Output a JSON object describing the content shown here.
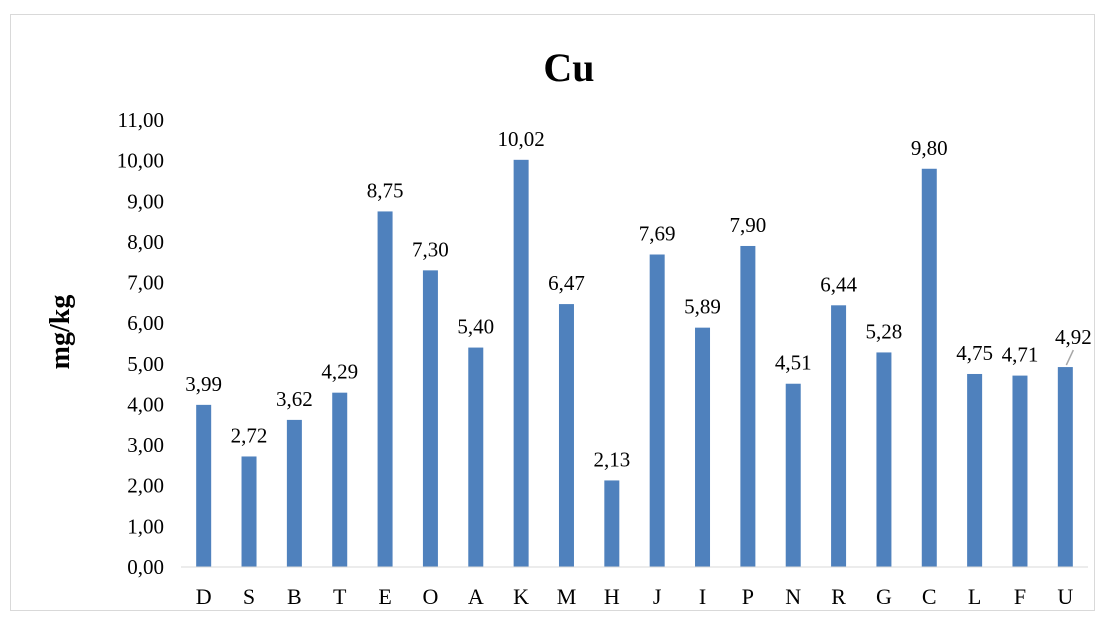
{
  "chart_data": {
    "type": "bar",
    "title": "Cu",
    "xlabel": "",
    "ylabel": "mg/kg",
    "ylim": [
      0,
      11
    ],
    "ytick_step": 1,
    "ytick_labels": [
      "0,00",
      "1,00",
      "2,00",
      "3,00",
      "4,00",
      "5,00",
      "6,00",
      "7,00",
      "8,00",
      "9,00",
      "10,00",
      "11,00"
    ],
    "grid": false,
    "bar_color": "#4f81bd",
    "categories": [
      "D",
      "S",
      "B",
      "T",
      "E",
      "O",
      "A",
      "K",
      "M",
      "H",
      "J",
      "I",
      "P",
      "N",
      "R",
      "G",
      "C",
      "L",
      "F",
      "U"
    ],
    "values": [
      3.99,
      2.72,
      3.62,
      4.29,
      8.75,
      7.3,
      5.4,
      10.02,
      6.47,
      2.13,
      7.69,
      5.89,
      7.9,
      4.51,
      6.44,
      5.28,
      9.8,
      4.75,
      4.71,
      4.92
    ],
    "data_labels": [
      "3,99",
      "2,72",
      "3,62",
      "4,29",
      "8,75",
      "7,30",
      "5,40",
      "10,02",
      "6,47",
      "2,13",
      "7,69",
      "5,89",
      "7,90",
      "4,51",
      "6,44",
      "5,28",
      "9,80",
      "4,75",
      "4,71",
      "4,92"
    ]
  }
}
